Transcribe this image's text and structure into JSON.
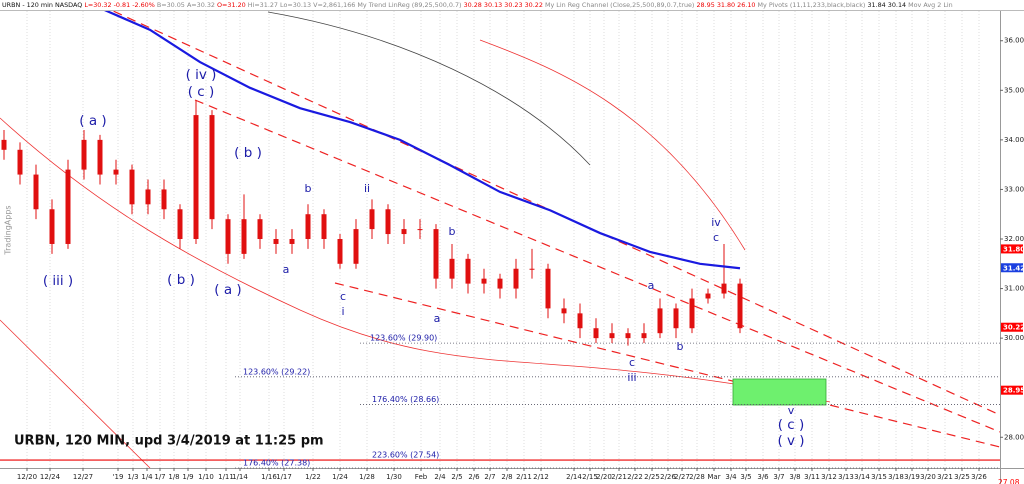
{
  "header": [
    "URBN - 120 min NASDAQ",
    "L=30.32",
    "-0.81",
    "-2.60%",
    "B=30.05",
    "A=30.32",
    "O=31.20",
    "Hi=31.27",
    "Lo=30.13",
    "V=2,861,166",
    "My Trend LinReg (89,25,500,0.7)",
    "30.28",
    "30.13",
    "30.23",
    "30.22",
    "My Lin Reg Channel (Close,25,500,89,0.7,true)",
    "28.95",
    "31.80",
    "26.10",
    "My Pivots (11,11,233,black,black)",
    "31.84",
    "30.14",
    "Mov Avg 2 Lin"
  ],
  "watermark": "TradingApps",
  "chart_data": {
    "type": "candlestick",
    "title": "URBN, 120 MIN, upd 3/4/2019 at 11:25 pm",
    "xlim": [
      0,
      250
    ],
    "ylim": [
      27.38,
      36.6
    ],
    "yticks": [
      {
        "value": 36,
        "label": "36.00"
      },
      {
        "value": 35,
        "label": "35.00"
      },
      {
        "value": 34,
        "label": "34.00"
      },
      {
        "value": 33,
        "label": "33.00"
      },
      {
        "value": 32,
        "label": "32.00"
      },
      {
        "value": 31,
        "label": "31.00"
      },
      {
        "value": 30,
        "label": "30.00"
      },
      {
        "value": 28,
        "label": "28.00"
      }
    ],
    "xticks": [
      {
        "value": 6.75,
        "label": "12/20"
      },
      {
        "value": 12.5,
        "label": "12/24"
      },
      {
        "value": 20.75,
        "label": "12/27"
      },
      {
        "value": 29.5,
        "label": "'19"
      },
      {
        "value": 33.25,
        "label": "1/3"
      },
      {
        "value": 36.75,
        "label": "1/4"
      },
      {
        "value": 40,
        "label": "1/7"
      },
      {
        "value": 43.5,
        "label": "1/8"
      },
      {
        "value": 47,
        "label": "1/9"
      },
      {
        "value": 51.5,
        "label": "1/10"
      },
      {
        "value": 56.5,
        "label": "1/11"
      },
      {
        "value": 60,
        "label": "1/14"
      },
      {
        "value": 67.25,
        "label": "1/16"
      },
      {
        "value": 71,
        "label": "1/17"
      },
      {
        "value": 78.25,
        "label": "1/22"
      },
      {
        "value": 85,
        "label": "1/24"
      },
      {
        "value": 91.75,
        "label": "1/28"
      },
      {
        "value": 98.5,
        "label": "1/30"
      },
      {
        "value": 105.25,
        "label": "Feb"
      },
      {
        "value": 110,
        "label": "2/4"
      },
      {
        "value": 114.25,
        "label": "2/5"
      },
      {
        "value": 118.5,
        "label": "2/6"
      },
      {
        "value": 122.5,
        "label": "2/7"
      },
      {
        "value": 126.75,
        "label": "2/8"
      },
      {
        "value": 131,
        "label": "2/11"
      },
      {
        "value": 135.25,
        "label": "2/12"
      },
      {
        "value": 143.5,
        "label": "2/14"
      },
      {
        "value": 147.5,
        "label": "2/15"
      },
      {
        "value": 151,
        "label": "2/20"
      },
      {
        "value": 154.75,
        "label": "2/21"
      },
      {
        "value": 158.75,
        "label": "2/22"
      },
      {
        "value": 163,
        "label": "2/25"
      },
      {
        "value": 167,
        "label": "2/26"
      },
      {
        "value": 170.5,
        "label": "2/27"
      },
      {
        "value": 174.25,
        "label": "2/28"
      },
      {
        "value": 178.5,
        "label": "Mar"
      },
      {
        "value": 182.75,
        "label": "3/4"
      },
      {
        "value": 186.5,
        "label": "3/5"
      },
      {
        "value": 190.75,
        "label": "3/6"
      },
      {
        "value": 194.75,
        "label": "3/7"
      },
      {
        "value": 198.75,
        "label": "3/8"
      },
      {
        "value": 203,
        "label": "3/11"
      },
      {
        "value": 207.25,
        "label": "3/12"
      },
      {
        "value": 211.5,
        "label": "3/13"
      },
      {
        "value": 215.5,
        "label": "3/14"
      },
      {
        "value": 219.75,
        "label": "3/15"
      },
      {
        "value": 224,
        "label": "3/18"
      },
      {
        "value": 228,
        "label": "3/19"
      },
      {
        "value": 232,
        "label": "3/20"
      },
      {
        "value": 236.25,
        "label": "3/21"
      },
      {
        "value": 240.5,
        "label": "3/25"
      },
      {
        "value": 244.75,
        "label": "3/26"
      }
    ],
    "candles": {
      "color": "#e01010",
      "x": [
        1,
        5,
        9,
        13,
        17,
        21,
        25,
        29,
        33,
        37,
        41,
        45,
        49,
        53,
        57,
        61,
        65,
        69,
        73,
        77,
        81,
        85,
        89,
        93,
        97,
        101,
        105,
        109,
        113,
        117,
        121,
        125,
        129,
        133,
        137,
        141,
        145,
        149,
        153,
        157,
        161,
        165,
        169,
        173,
        177,
        181,
        185
      ],
      "open": [
        34.0,
        33.8,
        33.3,
        32.6,
        31.9,
        33.4,
        34.0,
        33.3,
        33.4,
        32.7,
        33.0,
        32.6,
        32.0,
        34.5,
        32.4,
        31.7,
        32.4,
        32.0,
        31.9,
        32.0,
        32.5,
        32.0,
        31.5,
        32.2,
        32.6,
        32.1,
        32.2,
        32.2,
        31.2,
        31.6,
        31.1,
        31.2,
        31.0,
        31.4,
        31.4,
        30.6,
        30.5,
        30.2,
        30.0,
        30.1,
        30.0,
        30.1,
        30.6,
        30.2,
        30.8,
        30.9,
        31.1
      ],
      "high": [
        34.2,
        33.95,
        33.5,
        32.8,
        33.6,
        34.2,
        34.1,
        33.6,
        33.5,
        33.2,
        33.2,
        32.7,
        34.8,
        34.6,
        32.5,
        32.9,
        32.5,
        32.2,
        32.2,
        32.7,
        32.6,
        32.1,
        32.4,
        32.8,
        32.7,
        32.4,
        32.4,
        32.3,
        31.9,
        31.7,
        31.4,
        31.3,
        31.6,
        31.8,
        31.5,
        30.8,
        30.7,
        30.4,
        30.3,
        30.2,
        30.3,
        30.8,
        30.7,
        31.0,
        31.0,
        31.9,
        31.2
      ],
      "low": [
        33.6,
        33.1,
        32.4,
        31.7,
        31.8,
        33.2,
        33.1,
        33.1,
        32.5,
        32.5,
        32.4,
        31.8,
        31.9,
        32.2,
        31.5,
        31.6,
        31.8,
        31.7,
        31.7,
        31.8,
        31.8,
        31.4,
        31.4,
        32.0,
        31.9,
        31.9,
        32.0,
        31.0,
        31.0,
        30.9,
        30.9,
        30.8,
        30.8,
        31.2,
        30.4,
        30.3,
        30.0,
        29.9,
        29.9,
        29.85,
        29.9,
        30.0,
        30.0,
        30.1,
        30.7,
        30.8,
        30.1
      ],
      "close": [
        33.8,
        33.3,
        32.6,
        31.9,
        33.4,
        34.0,
        33.3,
        33.4,
        32.7,
        33.0,
        32.6,
        32.0,
        34.5,
        32.4,
        31.7,
        32.4,
        32.0,
        31.9,
        32.0,
        32.5,
        32.0,
        31.5,
        32.2,
        32.6,
        32.1,
        32.2,
        32.2,
        31.2,
        31.6,
        31.1,
        31.2,
        31.0,
        31.4,
        31.4,
        30.6,
        30.5,
        30.2,
        30.0,
        30.1,
        30.0,
        30.1,
        30.6,
        30.2,
        30.8,
        30.9,
        31.1,
        30.2
      ]
    },
    "moving_average": {
      "color": "#1a1ae0",
      "x": [
        25,
        37.5,
        50,
        62.5,
        75,
        87.5,
        100,
        112.5,
        125,
        137.5,
        150,
        162.5,
        175,
        185
      ],
      "values": [
        36.66,
        36.22,
        35.57,
        35.05,
        34.64,
        34.36,
        34.0,
        33.49,
        32.95,
        32.58,
        32.12,
        31.74,
        31.5,
        31.41
      ]
    },
    "price_tags": [
      {
        "value": 31.8,
        "label": "31.80",
        "color": "#ff0000"
      },
      {
        "value": 31.42,
        "label": "31.42",
        "color": "#1a3fe0"
      },
      {
        "value": 30.22,
        "label": "30.22",
        "color": "#ff0000"
      },
      {
        "value": 28.95,
        "label": "28.95",
        "color": "#ff0000"
      }
    ],
    "price_labels": [
      {
        "value": 27.08,
        "label": "27.08",
        "color": "#ff0000"
      }
    ],
    "fib_levels": [
      {
        "value": 29.9,
        "label": "123.60% (29.90)"
      },
      {
        "value": 29.22,
        "label": "123.60% (29.22)"
      },
      {
        "value": 28.66,
        "label": "176.40% (28.66)"
      },
      {
        "value": 27.54,
        "label": "223.60% (27.54)"
      },
      {
        "value": 27.38,
        "label": "176.40% (27.38)"
      }
    ]
  },
  "waves": [
    "( iv )",
    "( c )",
    "( a )",
    "( b )",
    "b",
    "ii",
    "( iii )",
    "( b )",
    "( a )",
    "a",
    "c",
    "i",
    "b",
    "a",
    "a",
    "b",
    "c",
    "iii",
    "iv",
    "c",
    "v",
    "( c )",
    "( v )"
  ]
}
